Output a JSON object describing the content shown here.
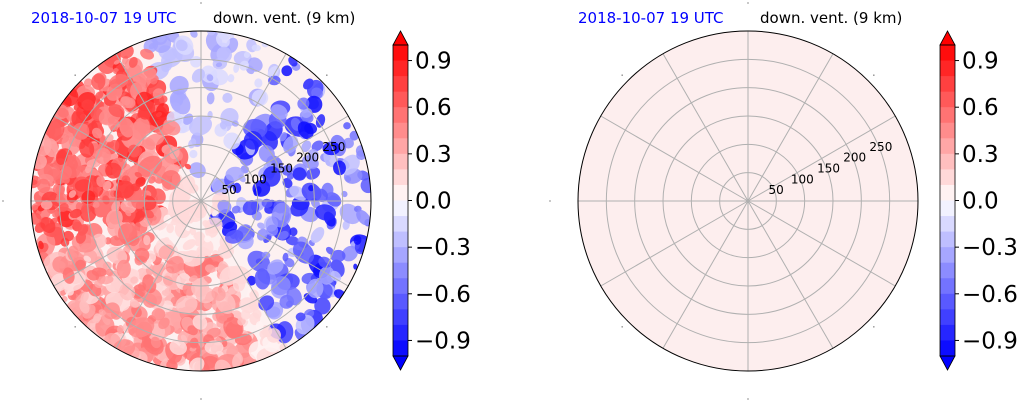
{
  "chart_data": [
    {
      "type": "heatmap",
      "projection": "polar",
      "title_left": "2018-10-07 19 UTC",
      "title_right": "down. vent. (9 km)",
      "radial_ticks": [
        "50",
        "100",
        "150",
        "200",
        "250"
      ],
      "radial_tick_values": [
        50,
        100,
        150,
        200,
        250
      ],
      "rmax": 300,
      "angular_grid_deg": [
        0,
        30,
        60,
        90,
        120,
        150,
        180,
        210,
        240,
        270,
        300,
        330
      ],
      "grid": true,
      "field_summary": "strong positive values (red) in western and southern sectors; negative values (blue) scattered to the east and north-east",
      "colorbar": {
        "cmap": "bwr",
        "vmin": -1.0,
        "vmax": 1.0,
        "ticks": [
          "0.9",
          "0.6",
          "0.3",
          "0.0",
          "−0.3",
          "−0.6",
          "−0.9"
        ],
        "tick_values": [
          0.9,
          0.6,
          0.3,
          0.0,
          -0.3,
          -0.6,
          -0.9
        ],
        "extend": "both",
        "levels": 20
      }
    },
    {
      "type": "heatmap",
      "projection": "polar",
      "title_left": "2018-10-07 19 UTC",
      "title_right": "down. vent. (9 km)",
      "radial_ticks": [
        "50",
        "100",
        "150",
        "200",
        "250"
      ],
      "radial_tick_values": [
        50,
        100,
        150,
        200,
        250
      ],
      "rmax": 300,
      "angular_grid_deg": [
        0,
        30,
        60,
        90,
        120,
        150,
        180,
        210,
        240,
        270,
        300,
        330
      ],
      "grid": true,
      "field_value": 0.05,
      "field_color": "#fdeeee",
      "colorbar": {
        "cmap": "bwr",
        "vmin": -1.0,
        "vmax": 1.0,
        "ticks": [
          "0.9",
          "0.6",
          "0.3",
          "0.0",
          "−0.3",
          "−0.6",
          "−0.9"
        ],
        "tick_values": [
          0.9,
          0.6,
          0.3,
          0.0,
          -0.3,
          -0.6,
          -0.9
        ],
        "extend": "both",
        "levels": 20
      }
    }
  ]
}
